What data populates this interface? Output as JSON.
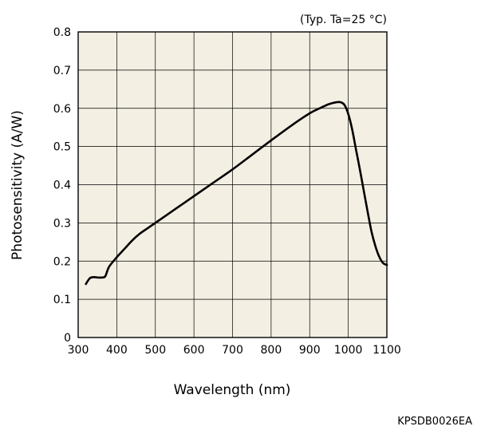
{
  "chart_data": {
    "type": "line",
    "title": "",
    "condition_note": "(Typ. Ta=25 °C)",
    "xlabel": "Wavelength (nm)",
    "ylabel": "Photosensitivity (A/W)",
    "xlim": [
      300,
      1100
    ],
    "ylim": [
      0,
      0.8
    ],
    "xticks": [
      300,
      400,
      500,
      600,
      700,
      800,
      900,
      1000,
      1100
    ],
    "yticks": [
      0,
      0.1,
      0.2,
      0.3,
      0.4,
      0.5,
      0.6,
      0.7,
      0.8
    ],
    "ytick_labels": [
      "0",
      "0.1",
      "0.2",
      "0.3",
      "0.4",
      "0.5",
      "0.6",
      "0.7",
      "0.8"
    ],
    "grid": true,
    "plot_background": "#f3efe2",
    "line_color": "#000000",
    "series": [
      {
        "x": [
          320,
          330,
          340,
          350,
          360,
          370,
          380,
          400,
          420,
          440,
          460,
          480,
          500,
          550,
          600,
          650,
          700,
          750,
          800,
          850,
          900,
          930,
          950,
          970,
          980,
          990,
          1000,
          1010,
          1020,
          1030,
          1040,
          1050,
          1060,
          1070,
          1080,
          1090,
          1100
        ],
        "y": [
          0.14,
          0.155,
          0.158,
          0.157,
          0.157,
          0.16,
          0.185,
          0.21,
          0.232,
          0.254,
          0.272,
          0.286,
          0.3,
          0.335,
          0.37,
          0.405,
          0.44,
          0.478,
          0.516,
          0.553,
          0.587,
          0.602,
          0.611,
          0.616,
          0.616,
          0.609,
          0.585,
          0.545,
          0.492,
          0.44,
          0.385,
          0.33,
          0.278,
          0.24,
          0.212,
          0.195,
          0.19
        ]
      }
    ]
  },
  "document_code": "KPSDB0026EA"
}
